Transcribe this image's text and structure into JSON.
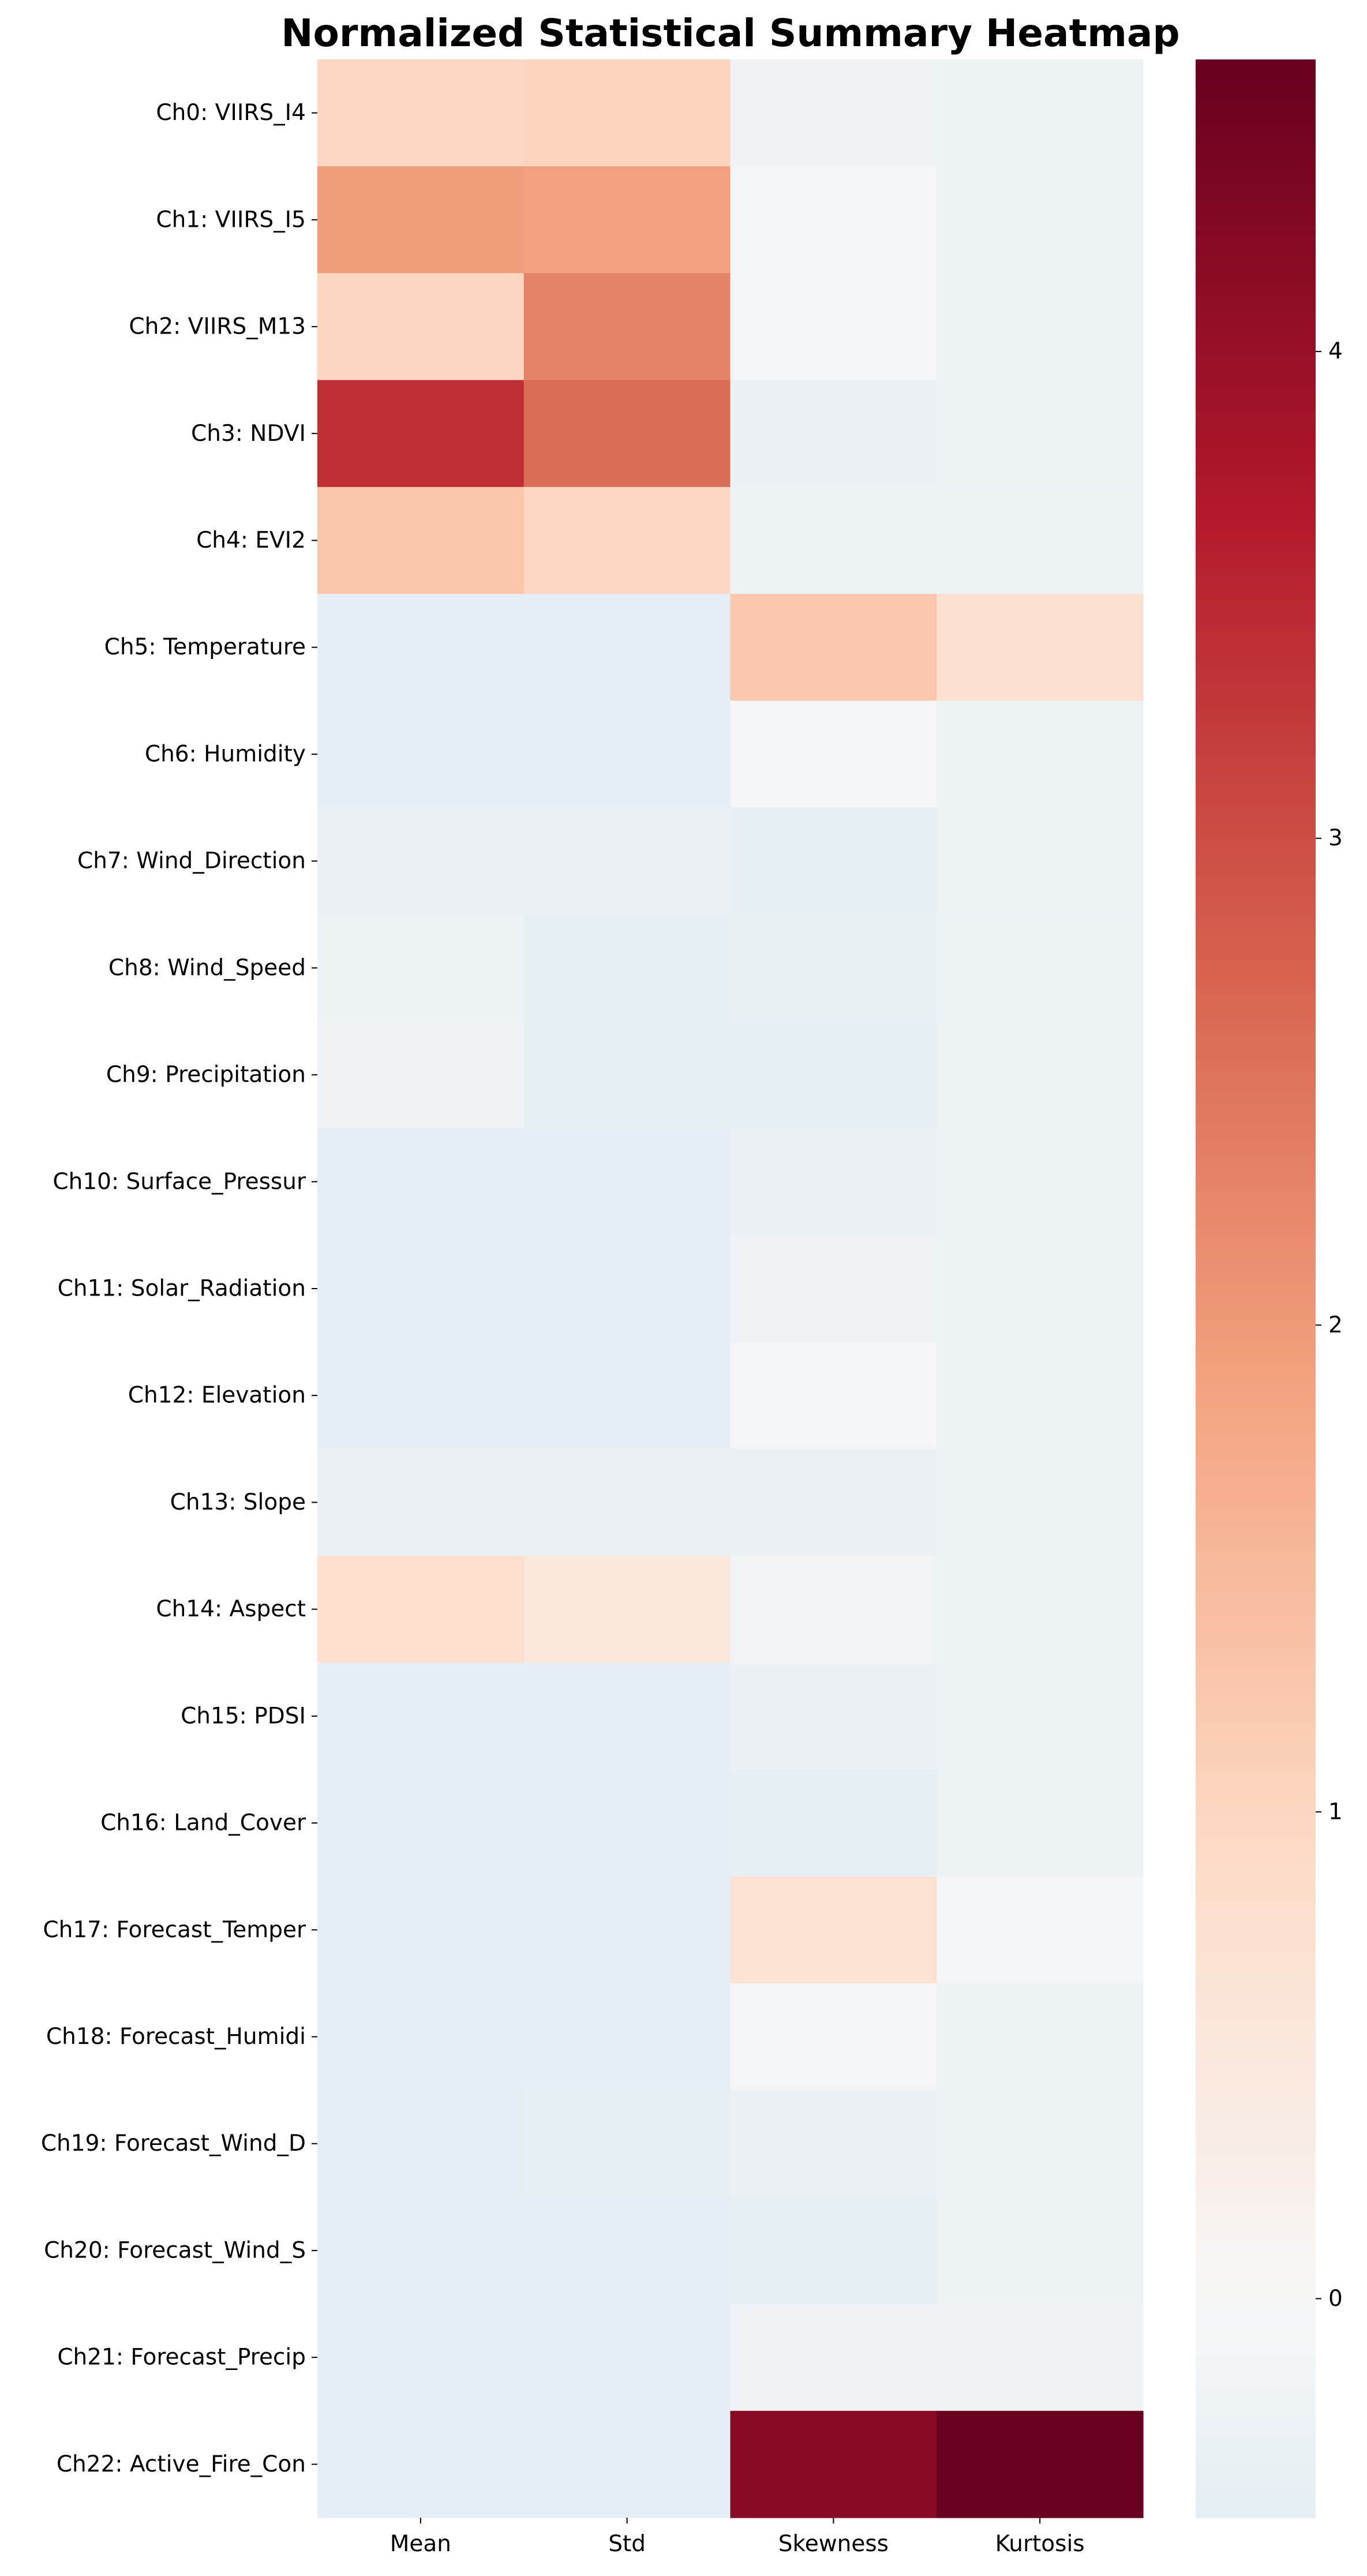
{
  "chart_data": {
    "type": "heatmap",
    "title": "Normalized Statistical Summary Heatmap",
    "columns": [
      "Mean",
      "Std",
      "Skewness",
      "Kurtosis"
    ],
    "rows": [
      "Ch0: VIIRS_I4",
      "Ch1: VIIRS_I5",
      "Ch2: VIIRS_M13",
      "Ch3: NDVI",
      "Ch4: EVI2",
      "Ch5: Temperature",
      "Ch6: Humidity",
      "Ch7: Wind_Direction",
      "Ch8: Wind_Speed",
      "Ch9: Precipitation",
      "Ch10: Surface_Pressur",
      "Ch11: Solar_Radiation",
      "Ch12: Elevation",
      "Ch13: Slope",
      "Ch14: Aspect",
      "Ch15: PDSI",
      "Ch16: Land_Cover",
      "Ch17: Forecast_Temper",
      "Ch18: Forecast_Humidi",
      "Ch19: Forecast_Wind_D",
      "Ch20: Forecast_Wind_S",
      "Ch21: Forecast_Precip",
      "Ch22: Active_Fire_Con"
    ],
    "values": [
      [
        0.95,
        1.05,
        -0.2,
        -0.25
      ],
      [
        1.95,
        1.9,
        -0.1,
        -0.25
      ],
      [
        1.0,
        2.3,
        -0.1,
        -0.25
      ],
      [
        3.4,
        2.6,
        -0.3,
        -0.25
      ],
      [
        1.3,
        0.95,
        -0.25,
        -0.25
      ],
      [
        -0.45,
        -0.45,
        1.25,
        0.75
      ],
      [
        -0.45,
        -0.45,
        -0.05,
        -0.25
      ],
      [
        -0.3,
        -0.3,
        -0.4,
        -0.25
      ],
      [
        -0.25,
        -0.4,
        -0.35,
        -0.25
      ],
      [
        -0.2,
        -0.4,
        -0.4,
        -0.25
      ],
      [
        -0.45,
        -0.45,
        -0.3,
        -0.25
      ],
      [
        -0.45,
        -0.45,
        -0.2,
        -0.25
      ],
      [
        -0.45,
        -0.45,
        -0.1,
        -0.25
      ],
      [
        -0.3,
        -0.3,
        -0.3,
        -0.25
      ],
      [
        0.8,
        0.55,
        -0.15,
        -0.25
      ],
      [
        -0.45,
        -0.45,
        -0.3,
        -0.25
      ],
      [
        -0.45,
        -0.45,
        -0.4,
        -0.25
      ],
      [
        -0.45,
        -0.45,
        0.7,
        -0.05
      ],
      [
        -0.45,
        -0.45,
        -0.1,
        -0.25
      ],
      [
        -0.45,
        -0.4,
        -0.3,
        -0.25
      ],
      [
        -0.45,
        -0.45,
        -0.4,
        -0.25
      ],
      [
        -0.45,
        -0.45,
        -0.2,
        -0.2
      ],
      [
        -0.45,
        -0.45,
        4.2,
        4.6
      ]
    ],
    "colorbar": {
      "colormap": "RdBu_r",
      "vmin": -0.45,
      "vmax": 4.6,
      "center": 0,
      "ticks": [
        0,
        1,
        2,
        3,
        4
      ]
    }
  }
}
